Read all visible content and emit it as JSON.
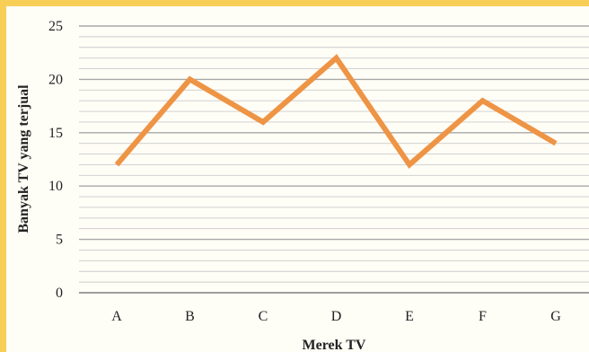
{
  "chart_data": {
    "type": "line",
    "categories": [
      "A",
      "B",
      "C",
      "D",
      "E",
      "F",
      "G"
    ],
    "series": [
      {
        "values": [
          12,
          20,
          16,
          22,
          12,
          18,
          14
        ]
      }
    ],
    "xlabel": "Merek TV",
    "ylabel": "Banyak TV yang terjual",
    "ylim": [
      0,
      25
    ],
    "yticks": [
      0,
      5,
      10,
      15,
      20,
      25
    ],
    "minor_grid_step": 1,
    "grid": true,
    "legend": "none",
    "colors": {
      "line": "#ee9445",
      "major_grid": "#a8a8a8",
      "minor_grid": "#cccccc",
      "background": "#fefdf6",
      "border": "#f7cf57"
    }
  }
}
